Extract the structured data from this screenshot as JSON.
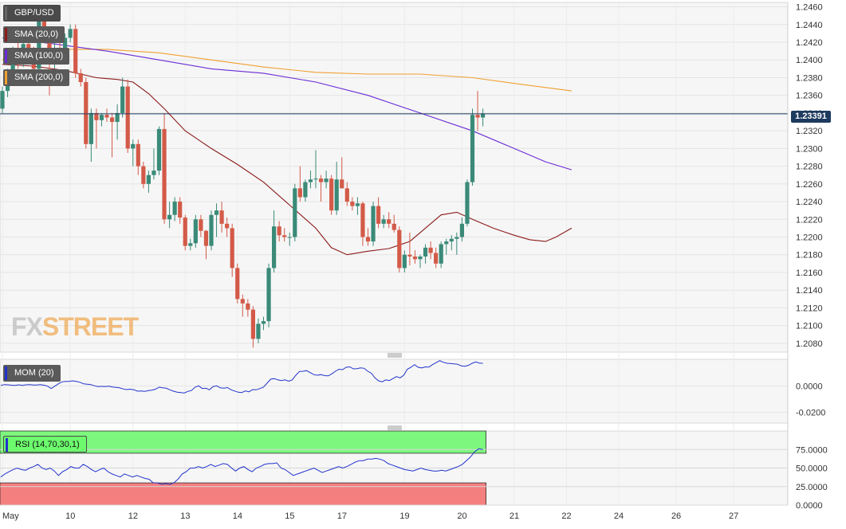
{
  "symbol": "GBP/USD",
  "indicators": {
    "sma20": {
      "label": "SMA (20,0)",
      "color": "#8b1a1a"
    },
    "sma100": {
      "label": "SMA (100,0)",
      "color": "#6a2bd6"
    },
    "sma200": {
      "label": "SMA (200,0)",
      "color": "#f0a030"
    },
    "mom": {
      "label": "MOM (20)",
      "color": "#2233cc"
    },
    "rsi": {
      "label": "RSI (14,70,30,1)",
      "color": "#2233cc"
    }
  },
  "current_price": "1.23391",
  "watermark": {
    "prefix": "FX",
    "suffix": "STREET"
  },
  "colors": {
    "bull": "#3a8a78",
    "bear": "#d35a48",
    "overbought": "#7ef77e",
    "oversold": "#f47f7f",
    "price_line": "#1d3a5f"
  },
  "chart_data": [
    {
      "type": "candlestick",
      "title": "GBP/USD",
      "ylim": [
        1.207,
        1.2465
      ],
      "yticks": [
        "1.2080",
        "1.2100",
        "1.2120",
        "1.2140",
        "1.2160",
        "1.2180",
        "1.2200",
        "1.2220",
        "1.2240",
        "1.2260",
        "1.2280",
        "1.2300",
        "1.2320",
        "1.2340",
        "1.2360",
        "1.2380",
        "1.2400",
        "1.2420",
        "1.2440",
        "1.2460"
      ],
      "xticks": [
        {
          "label": "May",
          "bar": 0
        },
        {
          "label": "10",
          "bar": 13
        },
        {
          "label": "12",
          "bar": 25
        },
        {
          "label": "13",
          "bar": 35
        },
        {
          "label": "14",
          "bar": 45
        },
        {
          "label": "15",
          "bar": 55
        },
        {
          "label": "17",
          "bar": 65
        },
        {
          "label": "19",
          "bar": 77
        },
        {
          "label": "20",
          "bar": 88
        },
        {
          "label": "21",
          "bar": 98
        },
        {
          "label": "22",
          "bar": 108
        },
        {
          "label": "24",
          "bar": 118
        },
        {
          "label": "26",
          "bar": 129
        },
        {
          "label": "27",
          "bar": 140
        }
      ],
      "candles": [
        [
          1.2345,
          1.237,
          1.234,
          1.2365
        ],
        [
          1.2365,
          1.239,
          1.2358,
          1.2385
        ],
        [
          1.2385,
          1.2415,
          1.238,
          1.2408
        ],
        [
          1.2408,
          1.242,
          1.239,
          1.2398
        ],
        [
          1.2398,
          1.2425,
          1.2392,
          1.2418
        ],
        [
          1.2418,
          1.2432,
          1.24,
          1.2405
        ],
        [
          1.2405,
          1.2415,
          1.2385,
          1.239
        ],
        [
          1.239,
          1.246,
          1.2385,
          1.245
        ],
        [
          1.245,
          1.2462,
          1.242,
          1.2425
        ],
        [
          1.2425,
          1.243,
          1.236,
          1.2395
        ],
        [
          1.2395,
          1.242,
          1.239,
          1.2412
        ],
        [
          1.2412,
          1.242,
          1.24,
          1.2405
        ],
        [
          1.2405,
          1.243,
          1.2398,
          1.2425
        ],
        [
          1.2425,
          1.244,
          1.242,
          1.2435
        ],
        [
          1.2435,
          1.244,
          1.238,
          1.2385
        ],
        [
          1.2385,
          1.239,
          1.237,
          1.2375
        ],
        [
          1.2375,
          1.238,
          1.23,
          1.2305
        ],
        [
          1.2305,
          1.2345,
          1.2285,
          1.234
        ],
        [
          1.234,
          1.2345,
          1.23,
          1.2332
        ],
        [
          1.2332,
          1.234,
          1.2325,
          1.2338
        ],
        [
          1.2338,
          1.2345,
          1.233,
          1.2335
        ],
        [
          1.2335,
          1.234,
          1.229,
          1.233
        ],
        [
          1.233,
          1.235,
          1.231,
          1.234
        ],
        [
          1.234,
          1.238,
          1.2335,
          1.237
        ],
        [
          1.237,
          1.2378,
          1.2295,
          1.23
        ],
        [
          1.23,
          1.231,
          1.228,
          1.2305
        ],
        [
          1.2305,
          1.231,
          1.227,
          1.228
        ],
        [
          1.228,
          1.2285,
          1.2255,
          1.226
        ],
        [
          1.226,
          1.2275,
          1.225,
          1.227
        ],
        [
          1.227,
          1.23,
          1.2265,
          1.2275
        ],
        [
          1.2275,
          1.2325,
          1.227,
          1.2322
        ],
        [
          1.2322,
          1.234,
          1.2215,
          1.222
        ],
        [
          1.222,
          1.224,
          1.221,
          1.2225
        ],
        [
          1.2225,
          1.2245,
          1.2218,
          1.224
        ],
        [
          1.224,
          1.2245,
          1.2215,
          1.2222
        ],
        [
          1.2222,
          1.2225,
          1.2185,
          1.219
        ],
        [
          1.219,
          1.2198,
          1.2185,
          1.2193
        ],
        [
          1.2193,
          1.2225,
          1.2188,
          1.222
        ],
        [
          1.222,
          1.2225,
          1.22,
          1.2207
        ],
        [
          1.2207,
          1.2208,
          1.2175,
          1.219
        ],
        [
          1.219,
          1.223,
          1.2185,
          1.2225
        ],
        [
          1.2225,
          1.2238,
          1.22,
          1.223
        ],
        [
          1.223,
          1.224,
          1.2205,
          1.2215
        ],
        [
          1.2215,
          1.2222,
          1.22,
          1.221
        ],
        [
          1.221,
          1.2215,
          1.2155,
          1.2165
        ],
        [
          1.2165,
          1.217,
          1.2125,
          1.213
        ],
        [
          1.213,
          1.2135,
          1.211,
          1.2125
        ],
        [
          1.2125,
          1.213,
          1.211,
          1.2118
        ],
        [
          1.2118,
          1.2122,
          1.2075,
          1.2085
        ],
        [
          1.2085,
          1.2108,
          1.208,
          1.2102
        ],
        [
          1.2102,
          1.211,
          1.2095,
          1.2105
        ],
        [
          1.2105,
          1.217,
          1.2098,
          1.2165
        ],
        [
          1.2165,
          1.223,
          1.216,
          1.2212
        ],
        [
          1.2212,
          1.2218,
          1.2195,
          1.2202
        ],
        [
          1.2202,
          1.221,
          1.2195,
          1.22
        ],
        [
          1.22,
          1.2205,
          1.219,
          1.22
        ],
        [
          1.22,
          1.226,
          1.2195,
          1.2255
        ],
        [
          1.2255,
          1.228,
          1.224,
          1.2245
        ],
        [
          1.2245,
          1.2265,
          1.224,
          1.2262
        ],
        [
          1.2262,
          1.2275,
          1.2255,
          1.2265
        ],
        [
          1.2265,
          1.2298,
          1.2255,
          1.2266
        ],
        [
          1.2266,
          1.227,
          1.224,
          1.2262
        ],
        [
          1.2262,
          1.2275,
          1.2255,
          1.2266
        ],
        [
          1.2266,
          1.227,
          1.2225,
          1.223
        ],
        [
          1.223,
          1.2285,
          1.2225,
          1.2265
        ],
        [
          1.2265,
          1.229,
          1.2255,
          1.2255
        ],
        [
          1.2255,
          1.2262,
          1.2235,
          1.224
        ],
        [
          1.224,
          1.2245,
          1.223,
          1.2235
        ],
        [
          1.2235,
          1.2245,
          1.2225,
          1.2238
        ],
        [
          1.2238,
          1.224,
          1.219,
          1.22
        ],
        [
          1.22,
          1.221,
          1.219,
          1.2195
        ],
        [
          1.2195,
          1.224,
          1.219,
          1.2235
        ],
        [
          1.2235,
          1.2245,
          1.221,
          1.2215
        ],
        [
          1.2215,
          1.2225,
          1.221,
          1.222
        ],
        [
          1.222,
          1.2228,
          1.221,
          1.2215
        ],
        [
          1.2215,
          1.2225,
          1.2205,
          1.2208
        ],
        [
          1.2208,
          1.2212,
          1.216,
          1.2165
        ],
        [
          1.2165,
          1.2185,
          1.216,
          1.218
        ],
        [
          1.218,
          1.2205,
          1.2168,
          1.2178
        ],
        [
          1.2178,
          1.2185,
          1.217,
          1.2175
        ],
        [
          1.2175,
          1.218,
          1.2165,
          1.2178
        ],
        [
          1.2178,
          1.2192,
          1.217,
          1.2188
        ],
        [
          1.2188,
          1.2195,
          1.2175,
          1.2182
        ],
        [
          1.2182,
          1.2188,
          1.2165,
          1.217
        ],
        [
          1.217,
          1.2195,
          1.2165,
          1.2192
        ],
        [
          1.2192,
          1.2198,
          1.218,
          1.2195
        ],
        [
          1.2195,
          1.2202,
          1.2185,
          1.2198
        ],
        [
          1.2198,
          1.2205,
          1.218,
          1.22
        ],
        [
          1.22,
          1.2222,
          1.2195,
          1.2215
        ],
        [
          1.2215,
          1.2265,
          1.2212,
          1.2262
        ],
        [
          1.2262,
          1.2345,
          1.2258,
          1.2338
        ],
        [
          1.2338,
          1.2365,
          1.232,
          1.2335
        ],
        [
          1.2335,
          1.2345,
          1.2325,
          1.2339
        ]
      ],
      "sma20": [
        [
          0,
          1.2395
        ],
        [
          6,
          1.2393
        ],
        [
          12,
          1.2388
        ],
        [
          18,
          1.238
        ],
        [
          22,
          1.2378
        ],
        [
          25,
          1.2375
        ],
        [
          28,
          1.2362
        ],
        [
          31,
          1.2345
        ],
        [
          35,
          1.232
        ],
        [
          40,
          1.23
        ],
        [
          45,
          1.2282
        ],
        [
          50,
          1.2262
        ],
        [
          55,
          1.2236
        ],
        [
          60,
          1.221
        ],
        [
          63,
          1.2188
        ],
        [
          66,
          1.218
        ],
        [
          70,
          1.2184
        ],
        [
          74,
          1.2187
        ],
        [
          78,
          1.2195
        ],
        [
          81,
          1.221
        ],
        [
          84,
          1.2225
        ],
        [
          87,
          1.2228
        ],
        [
          90,
          1.222
        ],
        [
          94,
          1.221
        ],
        [
          98,
          1.2202
        ],
        [
          101,
          1.2197
        ],
        [
          104,
          1.2195
        ],
        [
          106,
          1.22
        ],
        [
          109,
          1.221
        ]
      ],
      "sma100": [
        [
          0,
          1.2425
        ],
        [
          10,
          1.2418
        ],
        [
          20,
          1.241
        ],
        [
          30,
          1.24
        ],
        [
          40,
          1.239
        ],
        [
          50,
          1.2385
        ],
        [
          60,
          1.2375
        ],
        [
          70,
          1.236
        ],
        [
          80,
          1.234
        ],
        [
          90,
          1.232
        ],
        [
          98,
          1.23
        ],
        [
          104,
          1.2285
        ],
        [
          109,
          1.2276
        ]
      ],
      "sma200": [
        [
          0,
          1.24
        ],
        [
          10,
          1.2412
        ],
        [
          20,
          1.2412
        ],
        [
          30,
          1.2408
        ],
        [
          40,
          1.24
        ],
        [
          50,
          1.2392
        ],
        [
          60,
          1.2386
        ],
        [
          70,
          1.2384
        ],
        [
          80,
          1.2384
        ],
        [
          90,
          1.238
        ],
        [
          100,
          1.2372
        ],
        [
          109,
          1.2365
        ]
      ]
    },
    {
      "type": "line",
      "title": "MOM (20)",
      "ylim": [
        -0.028,
        0.02
      ],
      "yticks": [
        "0.0000",
        "-0.0200"
      ],
      "values": [
        0.0003,
        0.001,
        0.0008,
        0.0005,
        0.0004,
        0.0008,
        0.0004,
        0.0008,
        0.001,
        0.0007,
        0.0007,
        0.001,
        0.0005,
        -0.0002,
        -0.002,
        -0.0002,
        0.0015,
        0.003,
        0.0033,
        0.0033,
        0.0038,
        0.0033,
        0.0027,
        0.0015,
        0.0012,
        0.001,
        0.0001,
        -0.0005,
        -0.0004,
        -0.0005,
        -0.0002,
        -0.0008,
        -0.0012,
        -0.0015,
        -0.0023,
        -0.0028,
        -0.0025,
        -0.0029,
        -0.004,
        -0.0038,
        -0.0041,
        -0.0035,
        -0.0032,
        -0.0025,
        -0.001,
        -0.0015,
        -0.0018,
        -0.003,
        -0.004,
        -0.0047,
        -0.005,
        -0.0053,
        -0.0042,
        -0.0035,
        -0.001,
        0.0,
        -0.002,
        -0.0018,
        -0.003,
        -0.0005,
        0.0,
        -0.0015,
        -0.0018,
        -0.0013,
        -0.003,
        -0.0039,
        -0.0048,
        -0.005,
        -0.0038,
        -0.0045,
        -0.0028,
        -0.003,
        -0.002,
        -0.001,
        0.002,
        0.005,
        0.0055,
        0.0045,
        0.004,
        0.0045,
        0.0035,
        0.0045,
        0.008,
        0.0108,
        0.011,
        0.0115,
        0.01,
        0.0085,
        0.008,
        0.0085,
        0.0077,
        0.0075,
        0.009,
        0.011,
        0.0125,
        0.0122,
        0.014,
        0.0143,
        0.0128,
        0.013,
        0.0135,
        0.0132,
        0.011,
        0.0095,
        0.006,
        0.0038,
        0.003,
        0.0045,
        0.004,
        0.0055,
        0.007,
        0.006,
        0.008,
        0.0125,
        0.014,
        0.016,
        0.014,
        0.0135,
        0.0143,
        0.0141,
        0.016,
        0.0175,
        0.019,
        0.0178,
        0.017,
        0.0168,
        0.0165,
        0.0163,
        0.015,
        0.0148,
        0.0155,
        0.017,
        0.018,
        0.0172,
        0.017
      ]
    },
    {
      "type": "line",
      "title": "RSI (14,70,30,1)",
      "ylim": [
        0,
        100
      ],
      "yticks": [
        "75.0000",
        "50.0000",
        "25.0000",
        "0.0000"
      ],
      "overbought": 70,
      "oversold": 30,
      "values": [
        38,
        42,
        45,
        48,
        50,
        48,
        47,
        50,
        52,
        55,
        50,
        48,
        50,
        46,
        40,
        45,
        48,
        52,
        50,
        50,
        55,
        52,
        48,
        45,
        48,
        50,
        45,
        42,
        40,
        38,
        42,
        40,
        38,
        40,
        38,
        36,
        35,
        30,
        30,
        28,
        29,
        28,
        30,
        35,
        42,
        45,
        50,
        50,
        52,
        50,
        52,
        55,
        52,
        54,
        56,
        55,
        50,
        46,
        50,
        52,
        48,
        45,
        50,
        52,
        55,
        56,
        56,
        57,
        50,
        48,
        44,
        40,
        42,
        44,
        46,
        48,
        50,
        47,
        44,
        46,
        48,
        50,
        52,
        50,
        52,
        55,
        58,
        60,
        60,
        62,
        62,
        63,
        62,
        60,
        56,
        54,
        52,
        50,
        48,
        47,
        46,
        48,
        50,
        48,
        47,
        46,
        46,
        47,
        46,
        48,
        50,
        52,
        55,
        60,
        65,
        72,
        76,
        75
      ]
    }
  ]
}
